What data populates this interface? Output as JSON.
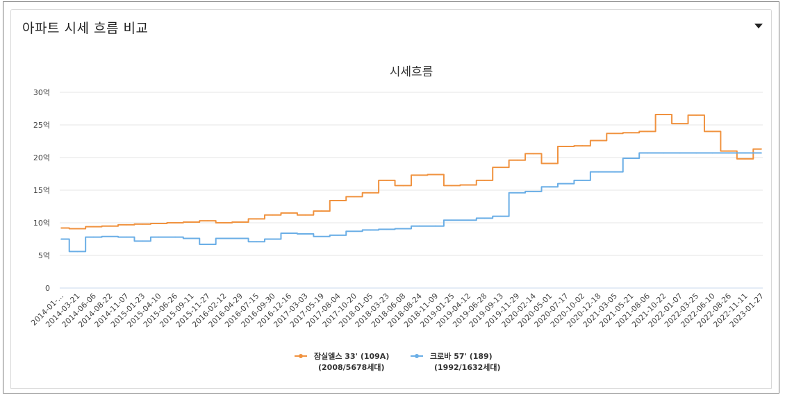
{
  "card": {
    "title": "아파트 시세 흐름 비교"
  },
  "colors": {
    "series1": "#f0923f",
    "series2": "#6aaee6",
    "grid": "#e5e5e5",
    "axis": "#c8d8ec"
  },
  "chart_data": {
    "type": "line",
    "title": "시세흐름",
    "xlabel": "",
    "ylabel": "",
    "ylim": [
      0,
      30
    ],
    "yticks": [
      {
        "value": 0,
        "label": "0"
      },
      {
        "value": 5,
        "label": "5억"
      },
      {
        "value": 10,
        "label": "10억"
      },
      {
        "value": 15,
        "label": "15억"
      },
      {
        "value": 20,
        "label": "20억"
      },
      {
        "value": 25,
        "label": "25억"
      },
      {
        "value": 30,
        "label": "30억"
      }
    ],
    "grid": true,
    "legend_position": "bottom",
    "x_tick_labels": [
      "2014-01-...",
      "2014-03-21",
      "2014-06-06",
      "2014-08-22",
      "2014-11-07",
      "2015-01-23",
      "2015-04-10",
      "2015-06-26",
      "2015-09-11",
      "2015-11-27",
      "2016-02-12",
      "2016-04-29",
      "2016-07-15",
      "2016-09-30",
      "2016-12-16",
      "2017-03-03",
      "2017-05-19",
      "2017-08-04",
      "2017-10-20",
      "2018-01-05",
      "2018-03-23",
      "2018-06-08",
      "2018-08-24",
      "2018-11-09",
      "2019-01-25",
      "2019-04-12",
      "2019-06-28",
      "2019-09-13",
      "2019-11-29",
      "2020-02-14",
      "2020-05-01",
      "2020-07-17",
      "2020-10-02",
      "2020-12-18",
      "2021-03-05",
      "2021-05-21",
      "2021-08-06",
      "2021-10-22",
      "2022-01-07",
      "2022-03-25",
      "2022-06-10",
      "2022-08-26",
      "2022-11-11",
      "2023-01-27"
    ],
    "x": [
      "2014-01",
      "2014-03-21",
      "2014-06-06",
      "2014-08-22",
      "2014-11-07",
      "2015-01-23",
      "2015-04-10",
      "2015-06-26",
      "2015-09-11",
      "2015-11-27",
      "2016-02-12",
      "2016-04-29",
      "2016-07-15",
      "2016-09-30",
      "2016-12-16",
      "2017-03-03",
      "2017-05-19",
      "2017-08-04",
      "2017-10-20",
      "2018-01-05",
      "2018-03-23",
      "2018-06-08",
      "2018-08-24",
      "2018-11-09",
      "2019-01-25",
      "2019-04-12",
      "2019-06-28",
      "2019-09-13",
      "2019-11-29",
      "2020-02-14",
      "2020-05-01",
      "2020-07-17",
      "2020-10-02",
      "2020-12-18",
      "2021-03-05",
      "2021-05-21",
      "2021-08-06",
      "2021-10-22",
      "2022-01-07",
      "2022-03-25",
      "2022-06-10",
      "2022-08-26",
      "2022-11-11",
      "2023-01-27"
    ],
    "series": [
      {
        "name": "잠실엘스 33' (109A)",
        "subtitle": "(2008/5678세대)",
        "values": [
          9.2,
          9.1,
          9.4,
          9.5,
          9.7,
          9.8,
          9.9,
          10.0,
          10.1,
          10.3,
          10.0,
          10.1,
          10.6,
          11.2,
          11.5,
          11.2,
          11.8,
          13.4,
          14.0,
          14.6,
          16.5,
          15.7,
          17.3,
          17.4,
          15.7,
          15.8,
          16.5,
          18.5,
          19.6,
          20.6,
          19.1,
          21.7,
          21.8,
          22.6,
          23.7,
          23.8,
          24.0,
          26.6,
          25.2,
          26.5,
          24.0,
          21.0,
          19.8,
          21.3
        ]
      },
      {
        "name": "크로바 57' (189)",
        "subtitle": "(1992/1632세대)",
        "values": [
          7.5,
          5.6,
          7.8,
          7.9,
          7.8,
          7.2,
          7.8,
          7.8,
          7.6,
          6.7,
          7.6,
          7.6,
          7.1,
          7.5,
          8.4,
          8.3,
          7.9,
          8.1,
          8.7,
          8.9,
          9.0,
          9.1,
          9.5,
          9.5,
          10.4,
          10.4,
          10.7,
          11.0,
          14.6,
          14.8,
          15.5,
          16.0,
          16.5,
          17.8,
          17.8,
          19.9,
          20.7,
          20.7,
          20.7,
          20.7,
          20.7,
          20.7,
          20.7,
          20.7
        ]
      }
    ]
  }
}
